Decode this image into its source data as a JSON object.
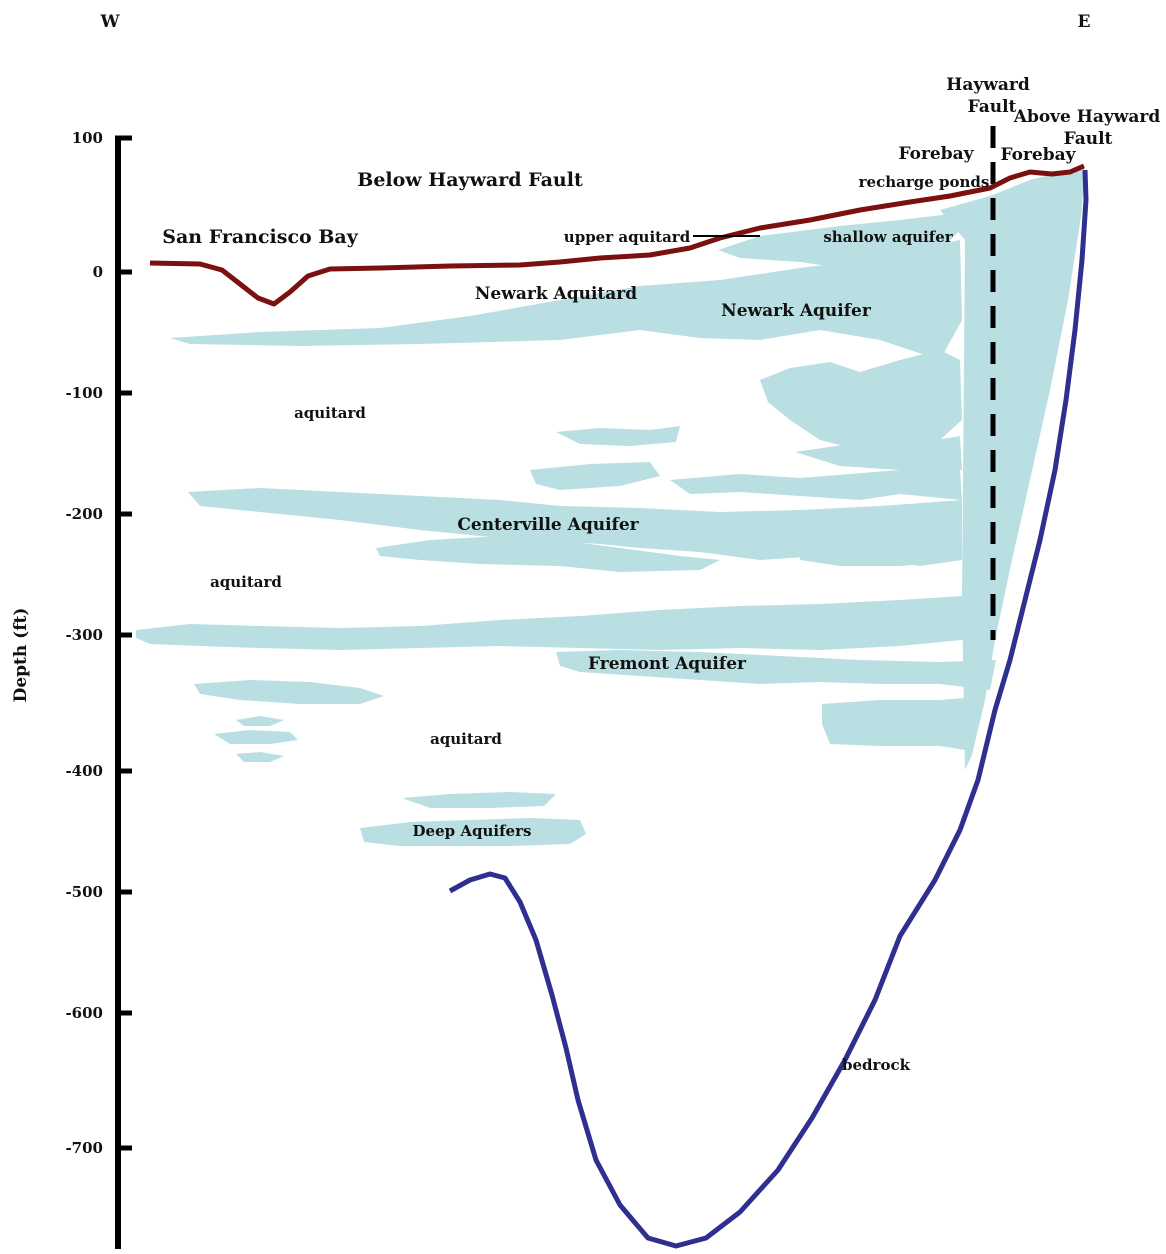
{
  "compass": {
    "west": "W",
    "east": "E"
  },
  "axis": {
    "label": "Depth (ft)",
    "ticks": [
      "100",
      "0",
      "-100",
      "-200",
      "-300",
      "-400",
      "-500",
      "-600",
      "-700"
    ]
  },
  "labels": {
    "below_fault": "Below Hayward Fault",
    "above_fault": [
      "Above Hayward",
      "Fault"
    ],
    "hayward_fault": [
      "Hayward",
      "Fault"
    ],
    "sf_bay": "San Francisco Bay",
    "forebay_left": "Forebay",
    "forebay_right": "Forebay",
    "recharge_ponds": "recharge ponds",
    "upper_aquitard": "upper aquitard",
    "shallow_aquifer": "shallow aquifer",
    "newark_aquitard": "Newark Aquitard",
    "newark_aquifer": "Newark Aquifer",
    "aquitard_1": "aquitard",
    "aquitard_2": "aquitard",
    "aquitard_3": "aquitard",
    "centerville_aquifer": "Centerville Aquifer",
    "fremont_aquifer": "Fremont Aquifer",
    "deep_aquifers": "Deep Aquifers",
    "bedrock": "bedrock"
  },
  "colors": {
    "aquifer": "#b9dfe2",
    "ground_surface": "#7a1010",
    "bedrock_line": "#2e2f8f",
    "axis": "#000000"
  }
}
